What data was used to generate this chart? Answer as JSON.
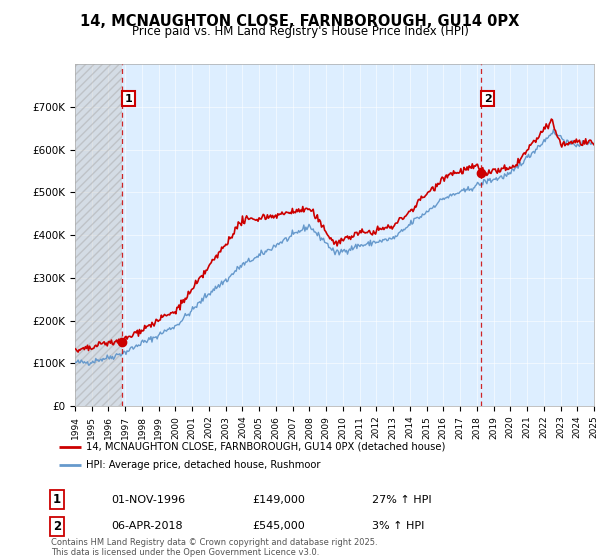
{
  "title": "14, MCNAUGHTON CLOSE, FARNBOROUGH, GU14 0PX",
  "subtitle": "Price paid vs. HM Land Registry's House Price Index (HPI)",
  "legend_line1": "14, MCNAUGHTON CLOSE, FARNBOROUGH, GU14 0PX (detached house)",
  "legend_line2": "HPI: Average price, detached house, Rushmoor",
  "annotation1_label": "1",
  "annotation1_date": "01-NOV-1996",
  "annotation1_price": "£149,000",
  "annotation1_hpi": "27% ↑ HPI",
  "annotation2_label": "2",
  "annotation2_date": "06-APR-2018",
  "annotation2_price": "£545,000",
  "annotation2_hpi": "3% ↑ HPI",
  "footnote": "Contains HM Land Registry data © Crown copyright and database right 2025.\nThis data is licensed under the Open Government Licence v3.0.",
  "house_color": "#cc0000",
  "hpi_color": "#6699cc",
  "plot_bg_color": "#ddeeff",
  "ylim": [
    0,
    800000
  ],
  "yticks": [
    0,
    100000,
    200000,
    300000,
    400000,
    500000,
    600000,
    700000
  ],
  "ytick_labels": [
    "£0",
    "£100K",
    "£200K",
    "£300K",
    "£400K",
    "£500K",
    "£600K",
    "£700K"
  ],
  "start_year": 1994,
  "end_year": 2025,
  "sale1_year": 1996.83,
  "sale1_price": 149000,
  "sale2_year": 2018.27,
  "sale2_price": 545000
}
